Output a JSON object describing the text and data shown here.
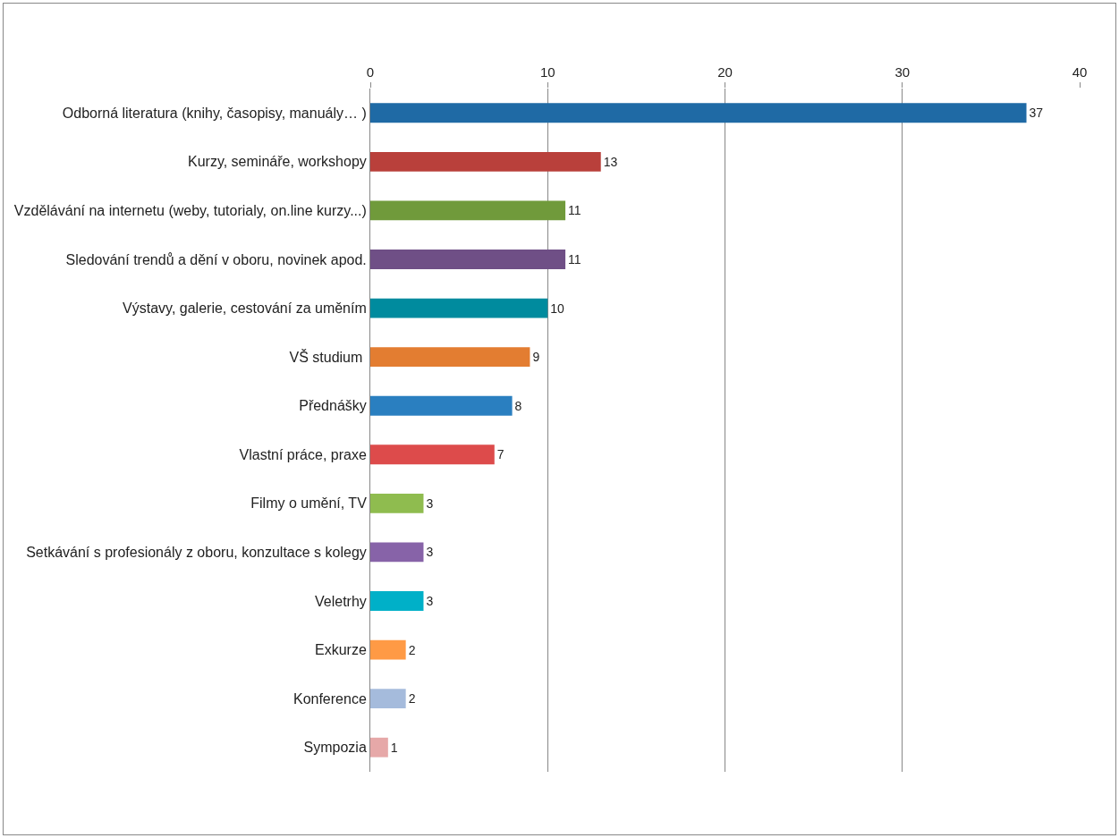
{
  "chart_data": {
    "type": "bar",
    "orientation": "horizontal",
    "categories": [
      "Odborná literatura (knihy, časopisy, manuály… )",
      "Kurzy, semináře, workshopy",
      "Vzdělávání na internetu (weby, tutorialy, on.line kurzy...)",
      "Sledování trendů a dění v oboru, novinek apod.",
      "Výstavy, galerie, cestování za uměním",
      "VŠ studium ",
      "Přednášky",
      "Vlastní práce, praxe",
      "Filmy o umění, TV",
      "Setkávání s profesionály z oboru, konzultace s kolegy",
      "Veletrhy",
      "Exkurze",
      "Konference",
      "Sympozia"
    ],
    "values": [
      37,
      13,
      11,
      11,
      10,
      9,
      8,
      7,
      3,
      3,
      3,
      2,
      2,
      1
    ],
    "colors": [
      "#1f6aa5",
      "#b9403b",
      "#709a3b",
      "#6f4f86",
      "#008b9e",
      "#e37d31",
      "#2a7fc0",
      "#dd4b4b",
      "#8fbc4f",
      "#8763a8",
      "#00b0c8",
      "#ff9a45",
      "#a5bbdc",
      "#e6a8a8"
    ],
    "xlim": [
      0,
      40
    ],
    "xticks": [
      0,
      10,
      20,
      30,
      40
    ],
    "grid": "x",
    "data_labels": true
  }
}
